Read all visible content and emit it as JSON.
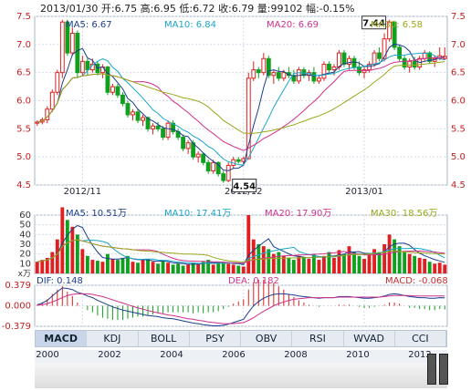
{
  "header": {
    "date": "2013/01/30",
    "open_label": "开:",
    "open": "6.75",
    "high_label": "高:",
    "high": "6.95",
    "low_label": "低:",
    "low": "6.72",
    "close_label": "收:",
    "close": "6.79",
    "volume_label": "量:",
    "volume": "99102",
    "change_label": "幅:",
    "change": "-0.15%"
  },
  "price_legend": [
    {
      "text": "MA5: 6.67",
      "color": "#1a3e8c"
    },
    {
      "text": "MA10: 6.84",
      "color": "#1aa5c8"
    },
    {
      "text": "MA20: 6.69",
      "color": "#d0308c"
    },
    {
      "text": "MA30: 6.58",
      "color": "#9aa81a"
    }
  ],
  "volume_legend": [
    {
      "text": "MA5: 10.51万",
      "color": "#1a3e8c"
    },
    {
      "text": "MA10: 17.41万",
      "color": "#1aa5c8"
    },
    {
      "text": "MA20: 17.90万",
      "color": "#d0308c"
    },
    {
      "text": "MA30: 18.56万",
      "color": "#9aa81a"
    }
  ],
  "macd_legend": {
    "dif": "DIF: 0.148",
    "dea": "DEA: 0.182",
    "macd": "MACD: -0.068",
    "dif_color": "#1a3e8c",
    "dea_color": "#d0308c",
    "macd_color": "#c03030"
  },
  "price_axis": {
    "ticks": [
      "7.5",
      "7.0",
      "6.5",
      "6.0",
      "5.5",
      "5.0",
      "4.5"
    ],
    "min": 4.5,
    "max": 7.5
  },
  "volume_axis": {
    "ticks": [
      "60",
      "50",
      "40",
      "30",
      "20",
      "10"
    ],
    "unit": "x万",
    "min": 0,
    "max": 60
  },
  "macd_axis": {
    "ticks": [
      "0.379",
      "0.000",
      "-0.379"
    ],
    "min": -0.379,
    "max": 0.379
  },
  "date_labels": [
    {
      "text": "2012/11",
      "index": 9
    },
    {
      "text": "2012/12",
      "index": 41
    },
    {
      "text": "2013/01",
      "index": 65
    }
  ],
  "annotations": {
    "high": "7.44",
    "low": "4.54"
  },
  "tabs": [
    {
      "label": "MACD",
      "active": true
    },
    {
      "label": "KDJ"
    },
    {
      "label": "BOLL"
    },
    {
      "label": "PSY"
    },
    {
      "label": "OBV"
    },
    {
      "label": "RSI"
    },
    {
      "label": "WVAD"
    },
    {
      "label": "CCI"
    }
  ],
  "years": [
    "2000",
    "2002",
    "2004",
    "2006",
    "2008",
    "2010",
    "2012"
  ],
  "colors": {
    "up": "#e02020",
    "down": "#10a020",
    "grid": "#d4dbe6",
    "frame": "#a8b4c6"
  },
  "chart_data": {
    "type": "candlestick",
    "title": "",
    "xlabel": "",
    "ylabel": "",
    "ylim": [
      4.5,
      7.5
    ],
    "note": "approximate daily OHLC read from screenshot, ~82 trading days",
    "ohlc": [
      [
        5.6,
        5.65,
        5.55,
        5.62
      ],
      [
        5.62,
        5.7,
        5.58,
        5.66
      ],
      [
        5.66,
        5.9,
        5.6,
        5.85
      ],
      [
        5.85,
        6.2,
        5.8,
        6.15
      ],
      [
        6.15,
        6.55,
        6.1,
        6.5
      ],
      [
        6.5,
        7.44,
        6.4,
        7.4
      ],
      [
        7.4,
        7.44,
        6.8,
        6.85
      ],
      [
        6.85,
        7.3,
        6.8,
        7.2
      ],
      [
        7.2,
        7.25,
        6.4,
        6.5
      ],
      [
        6.5,
        6.8,
        6.45,
        6.7
      ],
      [
        6.7,
        6.75,
        6.45,
        6.55
      ],
      [
        6.55,
        6.75,
        6.5,
        6.65
      ],
      [
        6.65,
        6.7,
        6.45,
        6.5
      ],
      [
        6.5,
        6.65,
        6.4,
        6.6
      ],
      [
        6.6,
        6.62,
        6.1,
        6.15
      ],
      [
        6.15,
        6.3,
        6.1,
        6.25
      ],
      [
        6.25,
        6.3,
        6.05,
        6.1
      ],
      [
        6.1,
        6.15,
        5.9,
        5.95
      ],
      [
        5.95,
        6.0,
        5.7,
        5.75
      ],
      [
        5.75,
        5.85,
        5.65,
        5.8
      ],
      [
        5.8,
        5.85,
        5.6,
        5.65
      ],
      [
        5.65,
        5.75,
        5.55,
        5.7
      ],
      [
        5.7,
        5.72,
        5.45,
        5.5
      ],
      [
        5.5,
        5.6,
        5.4,
        5.55
      ],
      [
        5.55,
        5.62,
        5.45,
        5.5
      ],
      [
        5.5,
        5.55,
        5.3,
        5.35
      ],
      [
        5.35,
        5.65,
        5.3,
        5.6
      ],
      [
        5.6,
        5.65,
        5.4,
        5.45
      ],
      [
        5.45,
        5.5,
        5.3,
        5.35
      ],
      [
        5.35,
        5.4,
        5.1,
        5.15
      ],
      [
        5.15,
        5.3,
        5.05,
        5.25
      ],
      [
        5.25,
        5.3,
        4.95,
        5.0
      ],
      [
        5.0,
        5.1,
        4.9,
        5.05
      ],
      [
        5.05,
        5.08,
        4.85,
        4.9
      ],
      [
        4.9,
        4.95,
        4.7,
        4.75
      ],
      [
        4.75,
        4.95,
        4.7,
        4.9
      ],
      [
        4.9,
        4.92,
        4.65,
        4.7
      ],
      [
        4.7,
        4.75,
        4.54,
        4.58
      ],
      [
        4.58,
        4.9,
        4.55,
        4.85
      ],
      [
        4.85,
        5.0,
        4.8,
        4.95
      ],
      [
        4.95,
        5.0,
        4.88,
        4.92
      ],
      [
        4.92,
        5.0,
        4.85,
        4.97
      ],
      [
        4.97,
        6.5,
        4.95,
        6.4
      ],
      [
        6.4,
        6.7,
        6.35,
        6.55
      ],
      [
        6.55,
        6.6,
        6.4,
        6.5
      ],
      [
        6.5,
        6.85,
        6.45,
        6.75
      ],
      [
        6.75,
        6.8,
        6.4,
        6.45
      ],
      [
        6.45,
        6.55,
        6.3,
        6.5
      ],
      [
        6.5,
        6.6,
        6.35,
        6.4
      ],
      [
        6.4,
        6.55,
        6.35,
        6.5
      ],
      [
        6.5,
        6.6,
        6.4,
        6.45
      ],
      [
        6.45,
        6.55,
        6.3,
        6.35
      ],
      [
        6.35,
        6.6,
        6.3,
        6.55
      ],
      [
        6.55,
        6.6,
        6.4,
        6.45
      ],
      [
        6.45,
        6.55,
        6.35,
        6.5
      ],
      [
        6.5,
        6.6,
        6.3,
        6.35
      ],
      [
        6.35,
        6.45,
        6.3,
        6.4
      ],
      [
        6.4,
        6.7,
        6.35,
        6.65
      ],
      [
        6.65,
        6.7,
        6.5,
        6.55
      ],
      [
        6.55,
        6.65,
        6.45,
        6.6
      ],
      [
        6.6,
        6.9,
        6.55,
        6.85
      ],
      [
        6.85,
        6.9,
        6.6,
        6.65
      ],
      [
        6.65,
        6.8,
        6.55,
        6.75
      ],
      [
        6.75,
        6.8,
        6.55,
        6.6
      ],
      [
        6.6,
        6.7,
        6.45,
        6.5
      ],
      [
        6.5,
        6.6,
        6.4,
        6.55
      ],
      [
        6.55,
        6.7,
        6.5,
        6.65
      ],
      [
        6.65,
        6.9,
        6.6,
        6.85
      ],
      [
        6.85,
        6.95,
        6.7,
        6.75
      ],
      [
        6.75,
        7.2,
        6.7,
        7.1
      ],
      [
        7.1,
        7.44,
        7.05,
        7.4
      ],
      [
        7.4,
        7.42,
        6.9,
        6.95
      ],
      [
        6.95,
        7.0,
        6.7,
        6.75
      ],
      [
        6.75,
        6.8,
        6.55,
        6.6
      ],
      [
        6.6,
        6.75,
        6.5,
        6.7
      ],
      [
        6.7,
        6.78,
        6.55,
        6.6
      ],
      [
        6.6,
        6.8,
        6.55,
        6.75
      ],
      [
        6.75,
        6.9,
        6.7,
        6.85
      ],
      [
        6.85,
        6.88,
        6.65,
        6.7
      ],
      [
        6.7,
        6.8,
        6.6,
        6.75
      ],
      [
        6.75,
        6.95,
        6.72,
        6.8
      ],
      [
        6.75,
        6.95,
        6.72,
        6.79
      ]
    ],
    "volume": [
      12,
      14,
      16,
      22,
      35,
      68,
      55,
      48,
      40,
      25,
      18,
      14,
      13,
      12,
      20,
      15,
      14,
      16,
      18,
      12,
      11,
      14,
      15,
      12,
      10,
      13,
      11,
      9,
      10,
      8,
      9,
      11,
      10,
      12,
      14,
      9,
      12,
      11,
      10,
      9,
      8,
      7,
      60,
      35,
      30,
      28,
      25,
      20,
      22,
      18,
      16,
      14,
      18,
      17,
      15,
      20,
      14,
      18,
      22,
      16,
      24,
      20,
      28,
      22,
      18,
      15,
      20,
      25,
      22,
      30,
      40,
      35,
      28,
      22,
      20,
      18,
      16,
      15,
      12,
      10,
      11,
      9
    ],
    "ma_series": [
      {
        "name": "MA5",
        "color": "#1a3e8c"
      },
      {
        "name": "MA10",
        "color": "#1aa5c8"
      },
      {
        "name": "MA20",
        "color": "#d0308c"
      },
      {
        "name": "MA30",
        "color": "#9aa81a"
      }
    ],
    "macd": {
      "dif": [
        0.02,
        0.05,
        0.1,
        0.18,
        0.26,
        0.33,
        0.32,
        0.3,
        0.25,
        0.22,
        0.18,
        0.15,
        0.1,
        0.06,
        0.02,
        -0.02,
        -0.05,
        -0.08,
        -0.1,
        -0.12,
        -0.14,
        -0.16,
        -0.18,
        -0.19,
        -0.2,
        -0.22,
        -0.23,
        -0.24,
        -0.26,
        -0.28,
        -0.3,
        -0.32,
        -0.33,
        -0.35,
        -0.36,
        -0.37,
        -0.37,
        -0.36,
        -0.34,
        -0.31,
        -0.28,
        -0.25,
        -0.12,
        0.0,
        0.08,
        0.14,
        0.18,
        0.21,
        0.22,
        0.22,
        0.21,
        0.2,
        0.18,
        0.17,
        0.16,
        0.15,
        0.14,
        0.15,
        0.15,
        0.15,
        0.17,
        0.17,
        0.17,
        0.16,
        0.15,
        0.14,
        0.14,
        0.15,
        0.16,
        0.18,
        0.21,
        0.22,
        0.21,
        0.19,
        0.17,
        0.16,
        0.15,
        0.15,
        0.14,
        0.14,
        0.15,
        0.148
      ],
      "dea": [
        0.01,
        0.02,
        0.04,
        0.07,
        0.11,
        0.15,
        0.19,
        0.21,
        0.22,
        0.22,
        0.22,
        0.21,
        0.19,
        0.17,
        0.14,
        0.11,
        0.08,
        0.05,
        0.02,
        -0.01,
        -0.04,
        -0.06,
        -0.09,
        -0.11,
        -0.13,
        -0.15,
        -0.17,
        -0.18,
        -0.2,
        -0.22,
        -0.24,
        -0.25,
        -0.27,
        -0.28,
        -0.3,
        -0.31,
        -0.32,
        -0.33,
        -0.33,
        -0.33,
        -0.32,
        -0.31,
        -0.27,
        -0.22,
        -0.16,
        -0.1,
        -0.05,
        0.0,
        0.04,
        0.07,
        0.1,
        0.12,
        0.13,
        0.14,
        0.15,
        0.15,
        0.15,
        0.15,
        0.15,
        0.15,
        0.16,
        0.16,
        0.16,
        0.16,
        0.16,
        0.16,
        0.16,
        0.16,
        0.16,
        0.17,
        0.18,
        0.19,
        0.19,
        0.19,
        0.19,
        0.18,
        0.18,
        0.18,
        0.18,
        0.18,
        0.18,
        0.182
      ]
    }
  }
}
